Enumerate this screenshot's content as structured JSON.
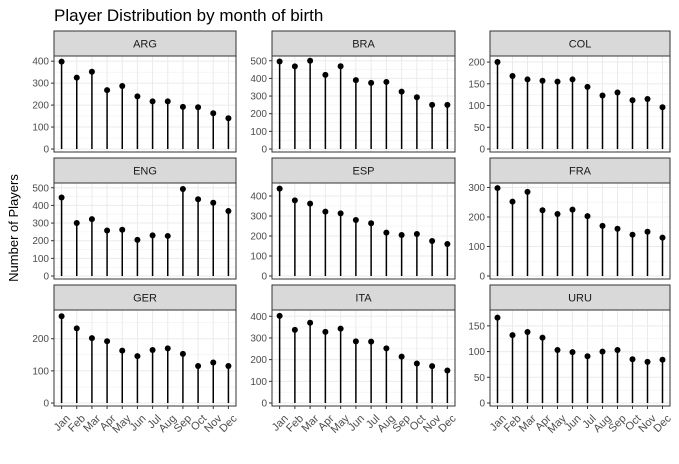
{
  "chart_data": {
    "type": "lollipop",
    "title": "Player Distribution by month of birth",
    "ylabel": "Number of Players",
    "xlabel": "",
    "categories": [
      "Jan",
      "Feb",
      "Mar",
      "Apr",
      "May",
      "Jun",
      "Jul",
      "Aug",
      "Sep",
      "Oct",
      "Nov",
      "Dec"
    ],
    "grid": true,
    "facets": [
      {
        "name": "ARG",
        "values": [
          398,
          325,
          352,
          268,
          287,
          240,
          217,
          217,
          192,
          190,
          163,
          140
        ],
        "ylim": [
          0,
          410
        ],
        "yticks": [
          0,
          100,
          200,
          300,
          400
        ]
      },
      {
        "name": "BRA",
        "values": [
          496,
          468,
          500,
          420,
          469,
          390,
          375,
          380,
          325,
          293,
          250,
          250
        ],
        "ylim": [
          0,
          510
        ],
        "yticks": [
          0,
          100,
          200,
          300,
          400,
          500
        ]
      },
      {
        "name": "COL",
        "values": [
          200,
          168,
          160,
          157,
          155,
          160,
          143,
          123,
          130,
          112,
          115,
          96
        ],
        "ylim": [
          0,
          207
        ],
        "yticks": [
          0,
          50,
          100,
          150,
          200
        ]
      },
      {
        "name": "ENG",
        "values": [
          445,
          300,
          322,
          258,
          262,
          205,
          230,
          227,
          493,
          435,
          415,
          368
        ],
        "ylim": [
          0,
          510
        ],
        "yticks": [
          0,
          100,
          200,
          300,
          400,
          500
        ]
      },
      {
        "name": "ESP",
        "values": [
          437,
          378,
          362,
          322,
          313,
          280,
          264,
          217,
          205,
          210,
          175,
          160
        ],
        "ylim": [
          0,
          450
        ],
        "yticks": [
          0,
          100,
          200,
          300,
          400
        ]
      },
      {
        "name": "FRA",
        "values": [
          298,
          252,
          285,
          223,
          210,
          225,
          203,
          170,
          160,
          140,
          150,
          130
        ],
        "ylim": [
          0,
          305
        ],
        "yticks": [
          0,
          100,
          200,
          300
        ]
      },
      {
        "name": "GER",
        "values": [
          270,
          232,
          202,
          192,
          163,
          146,
          165,
          170,
          153,
          115,
          126,
          115
        ],
        "ylim": [
          0,
          280
        ],
        "yticks": [
          0,
          100,
          200
        ]
      },
      {
        "name": "ITA",
        "values": [
          402,
          337,
          370,
          328,
          343,
          284,
          283,
          252,
          214,
          182,
          170,
          150
        ],
        "ylim": [
          0,
          415
        ],
        "yticks": [
          0,
          100,
          200,
          300,
          400
        ]
      },
      {
        "name": "URU",
        "values": [
          166,
          132,
          138,
          127,
          103,
          99,
          91,
          100,
          103,
          85,
          80,
          84
        ],
        "ylim": [
          0,
          175
        ],
        "yticks": [
          0,
          50,
          100,
          150
        ]
      }
    ]
  }
}
